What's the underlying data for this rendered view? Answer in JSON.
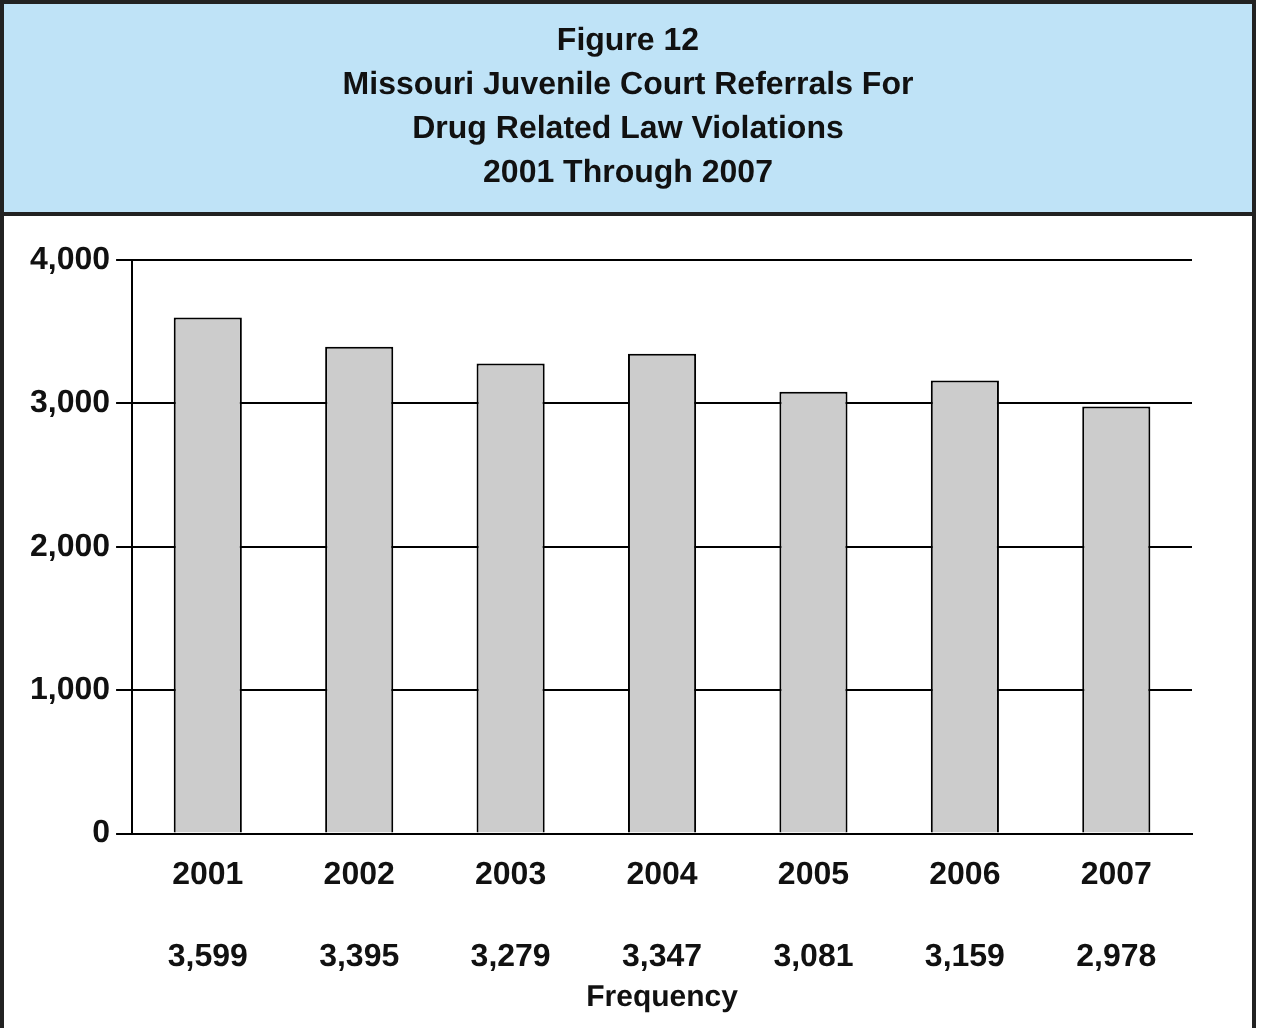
{
  "chart_data": {
    "type": "bar",
    "title": "Figure 12\nMissouri Juvenile Court Referrals For\nDrug Related Law Violations\n2001 Through 2007",
    "xlabel": "Frequency",
    "categories": [
      "2001",
      "2002",
      "2003",
      "2004",
      "2005",
      "2006",
      "2007"
    ],
    "values": [
      3599,
      3395,
      3279,
      3347,
      3081,
      3159,
      2978
    ],
    "color": "#cccccc",
    "ylim": [
      0,
      4000
    ],
    "yticks": [
      {
        "value": 0,
        "label": "0"
      },
      {
        "value": 1000,
        "label": "1,000"
      },
      {
        "value": 2000,
        "label": "2,000"
      },
      {
        "value": 3000,
        "label": "3,000"
      },
      {
        "value": 4000,
        "label": "4,000"
      }
    ],
    "value_labels": [
      "3,599",
      "3,395",
      "3,279",
      "3,347",
      "3,081",
      "3,159",
      "2,978"
    ],
    "grid": "y",
    "legend": false
  }
}
